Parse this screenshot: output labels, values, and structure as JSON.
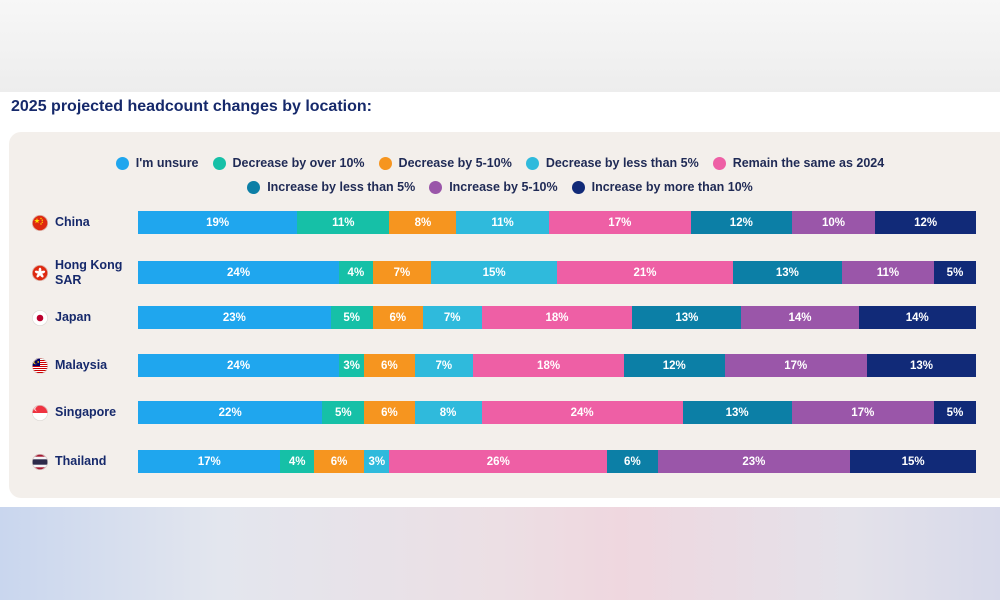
{
  "heading": "2025 projected headcount changes by location:",
  "chart_data": {
    "type": "bar",
    "orientation": "horizontal",
    "stacked": true,
    "title": "2025 projected headcount changes by location:",
    "legend_placement": "top",
    "categories": [
      "China",
      "Hong Kong SAR",
      "Japan",
      "Malaysia",
      "Singapore",
      "Thailand"
    ],
    "series": [
      {
        "name": "I'm unsure",
        "color": "#1fa6ee",
        "values": [
          19,
          24,
          23,
          24,
          22,
          17
        ]
      },
      {
        "name": "Decrease by over 10%",
        "color": "#16c0a7",
        "values": [
          11,
          4,
          5,
          3,
          5,
          4
        ]
      },
      {
        "name": "Decrease by 5-10%",
        "color": "#f6951f",
        "values": [
          8,
          7,
          6,
          6,
          6,
          6
        ]
      },
      {
        "name": "Decrease by less than 5%",
        "color": "#2fbadc",
        "values": [
          11,
          15,
          7,
          7,
          8,
          3
        ]
      },
      {
        "name": "Remain the same as 2024",
        "color": "#ee5fa5",
        "values": [
          17,
          21,
          18,
          18,
          24,
          26
        ]
      },
      {
        "name": "Increase by less than 5%",
        "color": "#0c7fa6",
        "values": [
          12,
          13,
          13,
          12,
          13,
          6
        ]
      },
      {
        "name": "Increase by 5-10%",
        "color": "#9a56a9",
        "values": [
          10,
          11,
          14,
          17,
          17,
          23
        ]
      },
      {
        "name": "Increase by more than 10%",
        "color": "#112a78",
        "values": [
          12,
          5,
          14,
          13,
          5,
          15
        ]
      }
    ],
    "value_suffix": "%"
  },
  "legend_rows": [
    [
      0,
      1,
      2,
      3,
      4
    ],
    [
      5,
      6,
      7
    ]
  ],
  "flags": {
    "China": "china-flag-icon",
    "Hong Kong SAR": "hong-kong-flag-icon",
    "Japan": "japan-flag-icon",
    "Malaysia": "malaysia-flag-icon",
    "Singapore": "singapore-flag-icon",
    "Thailand": "thailand-flag-icon"
  }
}
